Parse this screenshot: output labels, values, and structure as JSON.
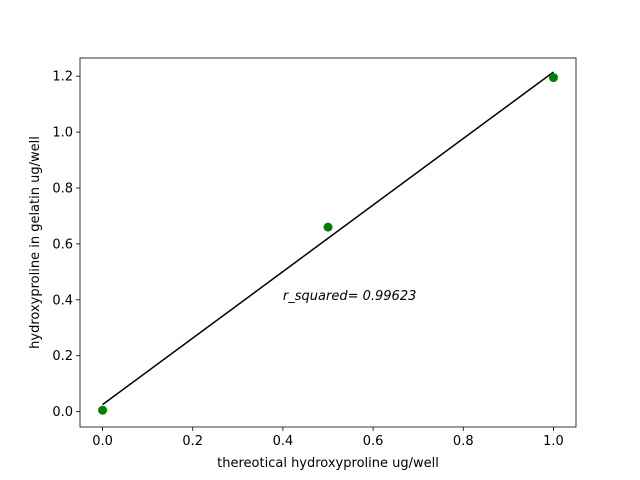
{
  "chart_data": {
    "type": "scatter",
    "title": "",
    "xlabel": "thereotical hydroxyproline ug/well",
    "ylabel": "hydroxyproline in gelatin ug/well",
    "xlim": [
      -0.05,
      1.05
    ],
    "ylim": [
      -0.055,
      1.265
    ],
    "x_ticks": [
      0.0,
      0.2,
      0.4,
      0.6,
      0.8,
      1.0
    ],
    "x_tick_labels": [
      "0.0",
      "0.2",
      "0.4",
      "0.6",
      "0.8",
      "1.0"
    ],
    "y_ticks": [
      0.0,
      0.2,
      0.4,
      0.6,
      0.8,
      1.0,
      1.2
    ],
    "y_tick_labels": [
      "0.0",
      "0.2",
      "0.4",
      "0.6",
      "0.8",
      "1.0",
      "1.2"
    ],
    "grid": false,
    "legend": "none",
    "points": {
      "x": [
        0.0,
        0.5,
        1.0
      ],
      "y": [
        0.005,
        0.66,
        1.195
      ],
      "color": "#008000"
    },
    "fit_line": {
      "x": [
        0.0,
        1.0
      ],
      "y": [
        0.025,
        1.215
      ],
      "color": "#000000"
    },
    "annotation": {
      "text": "r_squared= 0.99623",
      "x": 0.4,
      "y": 0.4
    }
  }
}
